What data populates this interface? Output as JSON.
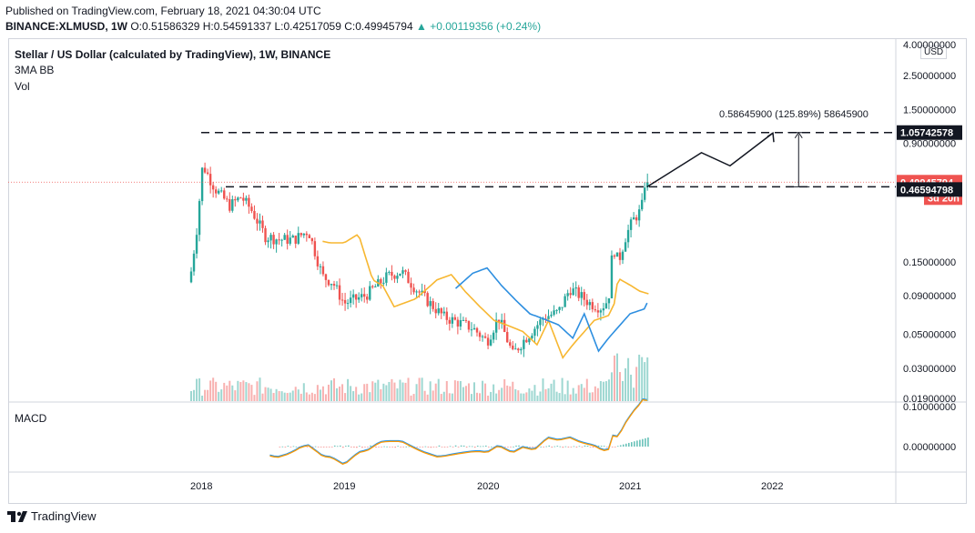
{
  "header": {
    "published": "Published on TradingView.com, February 18, 2021 04:30:04 UTC",
    "symbol_line": "BINANCE:XLMUSD, 1W",
    "change_arrow": "▲",
    "change": "+0.00119356 (+0.24%)",
    "ohlc": "O:0.51586329 H:0.54591337 L:0.42517059 C:0.49945794"
  },
  "legend": {
    "title": "Stellar / US Dollar (calculated by TradingView), 1W, BINANCE",
    "indicator": "3MA BB",
    "volume": "Vol"
  },
  "macd_label": "MACD",
  "currency": "USD",
  "brand": "TradingView",
  "colors": {
    "up": "#26a69a",
    "down": "#ef5350",
    "ma_orange": "#f7b731",
    "ma_blue": "#2e8fe0",
    "macd_line": "#2196f3",
    "signal_line": "#ff9800"
  },
  "chart_data": {
    "type": "candlestick",
    "scale": "log",
    "price_ticks": [
      "4.00000000",
      "2.50000000",
      "1.50000000",
      "0.90000000",
      "0.15000000",
      "0.09000000",
      "0.05000000",
      "0.03000000",
      "0.01900000"
    ],
    "macd_ticks": [
      "0.10000000",
      "0.00000000"
    ],
    "x_ticks": [
      "2018",
      "2019",
      "2020",
      "2021",
      "2022"
    ],
    "price_labels": [
      {
        "value": "1.05742578",
        "style": "dark"
      },
      {
        "value": "0.49945794",
        "style": "red"
      },
      {
        "value": "3d 20h",
        "style": "red"
      },
      {
        "value": "0.46594798",
        "style": "dark"
      }
    ],
    "annotation": "0.58645900 (125.89%) 58645900",
    "levels": [
      1.05742578,
      0.46594798
    ],
    "last_price": 0.49945794,
    "ylim": [
      0.019,
      4.0
    ]
  }
}
